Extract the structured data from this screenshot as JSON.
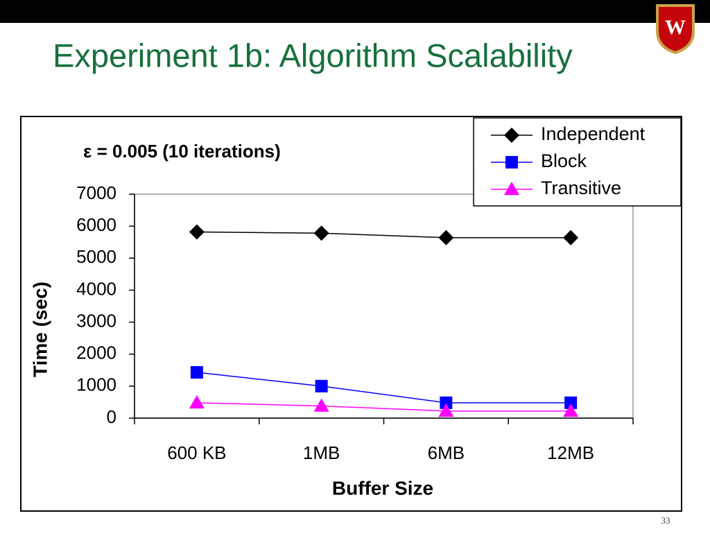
{
  "slide": {
    "title": "Experiment 1b: Algorithm Scalability",
    "page_number": "33"
  },
  "chart_data": {
    "type": "line",
    "annotation": "ε = 0.005 (10 iterations)",
    "x_label": "Buffer Size",
    "y_label": "Time (sec)",
    "categories": [
      "600 KB",
      "1MB",
      "6MB",
      "12MB"
    ],
    "series": [
      {
        "name": "Independent",
        "color": "#000000",
        "marker": "diamond",
        "values": [
          5820,
          5780,
          5640,
          5640
        ]
      },
      {
        "name": "Block",
        "color": "#0000ff",
        "marker": "square",
        "values": [
          1430,
          1000,
          480,
          480
        ]
      },
      {
        "name": "Transitive",
        "color": "#ff00ff",
        "marker": "triangle",
        "values": [
          480,
          380,
          220,
          220
        ]
      }
    ],
    "ylim": [
      0,
      7000
    ],
    "yticks": [
      0,
      1000,
      2000,
      3000,
      4000,
      5000,
      6000,
      7000
    ],
    "legend": "upper right"
  }
}
